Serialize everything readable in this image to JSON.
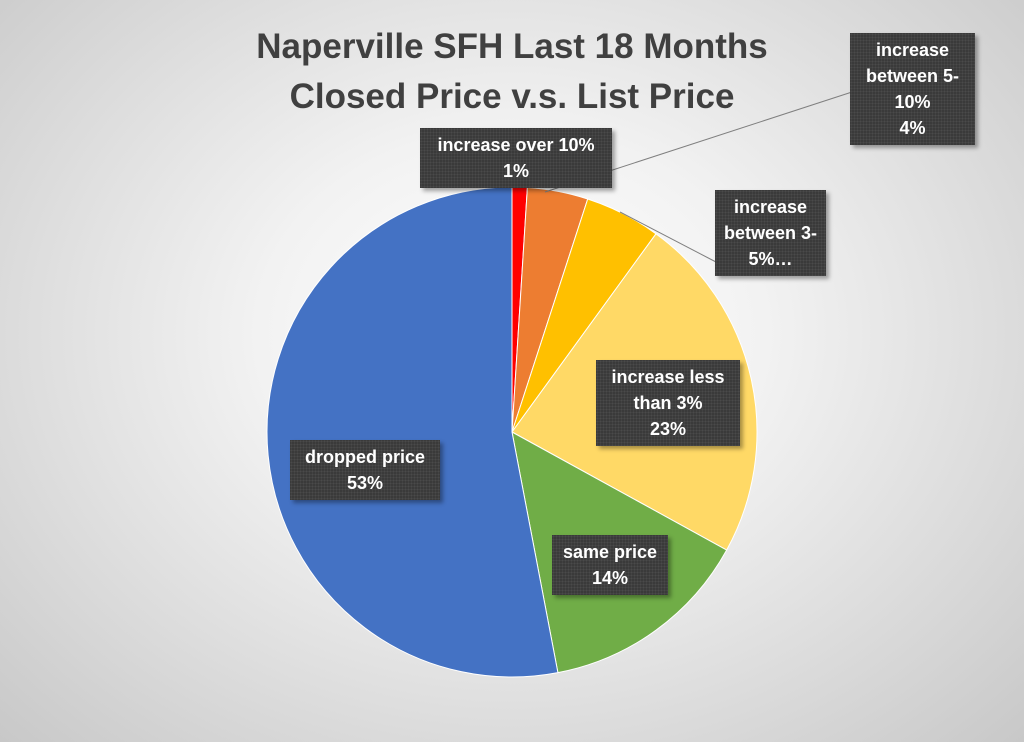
{
  "chart_data": {
    "type": "pie",
    "title": [
      "Naperville SFH Last 18 Months",
      "Closed Price v.s. List Price"
    ],
    "categories": [
      "increase over 10%",
      "increase between 5-10%",
      "increase between 3-5%…",
      "increase less than 3%",
      "same price",
      "dropped price"
    ],
    "values": [
      1,
      4,
      5,
      23,
      14,
      53
    ],
    "value_labels": [
      "1%",
      "4%",
      null,
      "23%",
      "14%",
      "53%"
    ],
    "colors": [
      "#ff0000",
      "#ed7d31",
      "#ffc000",
      "#ffd966",
      "#70ad47",
      "#4472c4"
    ]
  }
}
